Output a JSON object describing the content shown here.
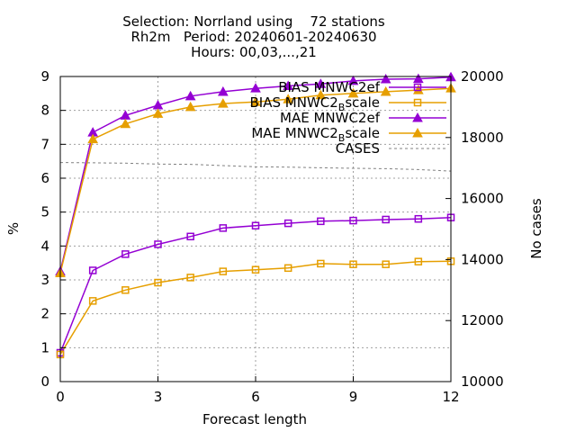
{
  "chart_data": {
    "type": "line",
    "title_lines": [
      "Selection: Norrland using    72 stations",
      "Rh2m   Period: 20240601-20240630",
      "Hours: 00,03,...,21"
    ],
    "xlabel": "Forecast length",
    "ylabel": "%",
    "y2label": "No cases",
    "xlim": [
      0,
      12
    ],
    "ylim": [
      0,
      9
    ],
    "y2lim": [
      10000,
      20000
    ],
    "xticks": [
      "0",
      "3",
      "6",
      "9",
      "12"
    ],
    "yticks": [
      "0",
      "1",
      "2",
      "3",
      "4",
      "5",
      "6",
      "7",
      "8",
      "9"
    ],
    "y2ticks": [
      "10000",
      "12000",
      "14000",
      "16000",
      "18000",
      "20000"
    ],
    "grid": true,
    "legend_position": "top-right",
    "x": [
      0,
      1,
      2,
      3,
      4,
      5,
      6,
      7,
      8,
      9,
      10,
      11,
      12
    ],
    "series": [
      {
        "label_main": "BIAS MNWC2",
        "label_sub": "",
        "label_tail": "ef",
        "axis": "y",
        "color": "#9400d3",
        "marker": "square",
        "values": [
          0.85,
          3.28,
          3.76,
          4.05,
          4.28,
          4.53,
          4.6,
          4.67,
          4.73,
          4.75,
          4.78,
          4.8,
          4.84
        ]
      },
      {
        "label_main": "BIAS MNWC2",
        "label_sub": "B",
        "label_tail": "scale",
        "axis": "y",
        "color": "#e69f00",
        "marker": "square",
        "values": [
          0.8,
          2.38,
          2.7,
          2.92,
          3.07,
          3.25,
          3.3,
          3.35,
          3.48,
          3.46,
          3.46,
          3.54,
          3.55
        ]
      },
      {
        "label_main": "MAE MNWC2",
        "label_sub": "",
        "label_tail": "ef",
        "axis": "y",
        "color": "#9400d3",
        "marker": "triangle",
        "values": [
          3.25,
          7.35,
          7.85,
          8.15,
          8.42,
          8.55,
          8.65,
          8.72,
          8.78,
          8.87,
          8.92,
          8.93,
          8.98
        ]
      },
      {
        "label_main": "MAE MNWC2",
        "label_sub": "B",
        "label_tail": "scale",
        "axis": "y",
        "color": "#e69f00",
        "marker": "triangle",
        "values": [
          3.2,
          7.15,
          7.6,
          7.9,
          8.1,
          8.2,
          8.25,
          8.33,
          8.45,
          8.5,
          8.55,
          8.6,
          8.65
        ]
      },
      {
        "label_main": "CASES",
        "label_sub": "",
        "label_tail": "",
        "axis": "y2",
        "color": "#808080",
        "marker": "none",
        "dashed": true,
        "values": [
          17180,
          17170,
          17160,
          17130,
          17120,
          17080,
          17040,
          17030,
          17010,
          16990,
          16980,
          16950,
          16900
        ]
      }
    ]
  }
}
